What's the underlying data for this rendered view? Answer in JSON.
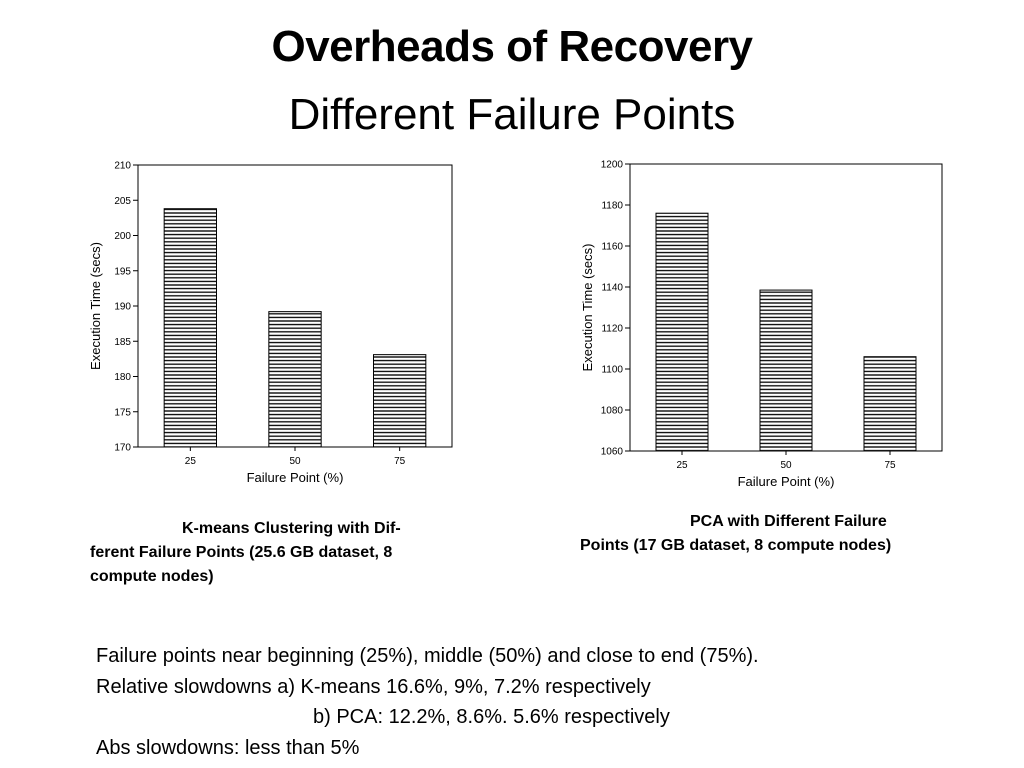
{
  "slide": {
    "title": "Overheads of Recovery",
    "subtitle": "Different Failure Points"
  },
  "captions": {
    "left": [
      "K-means  Clustering  with  Dif-",
      "ferent Failure Points (25.6 GB dataset, 8",
      "compute nodes)"
    ],
    "right": [
      "PCA  with  Different  Failure",
      "Points (17 GB dataset, 8 compute nodes)"
    ]
  },
  "notes": {
    "line1": "Failure points near beginning (25%), middle (50%) and close to end (75%).",
    "line2": "Relative slowdowns a) K-means 16.6%, 9%, 7.2% respectively",
    "line3": "b) PCA: 12.2%, 8.6%. 5.6% respectively",
    "line4": "Abs slowdowns: less than 5%"
  },
  "chart_data": [
    {
      "type": "bar",
      "title": "",
      "xlabel": "Failure Point (%)",
      "ylabel": "Execution Time (secs)",
      "categories": [
        "25",
        "50",
        "75"
      ],
      "values": [
        203.8,
        189.2,
        183.1
      ],
      "ylim": [
        170,
        210
      ],
      "yticks": [
        170,
        175,
        180,
        185,
        190,
        195,
        200,
        205,
        210
      ],
      "grid": false,
      "bar_fill": "horizontal-hatch"
    },
    {
      "type": "bar",
      "title": "",
      "xlabel": "Failure Point (%)",
      "ylabel": "Execution Time (secs)",
      "categories": [
        "25",
        "50",
        "75"
      ],
      "values": [
        1176,
        1138.5,
        1106
      ],
      "ylim": [
        1060,
        1200
      ],
      "yticks": [
        1060,
        1080,
        1100,
        1120,
        1140,
        1160,
        1180,
        1200
      ],
      "grid": false,
      "bar_fill": "horizontal-hatch"
    }
  ]
}
